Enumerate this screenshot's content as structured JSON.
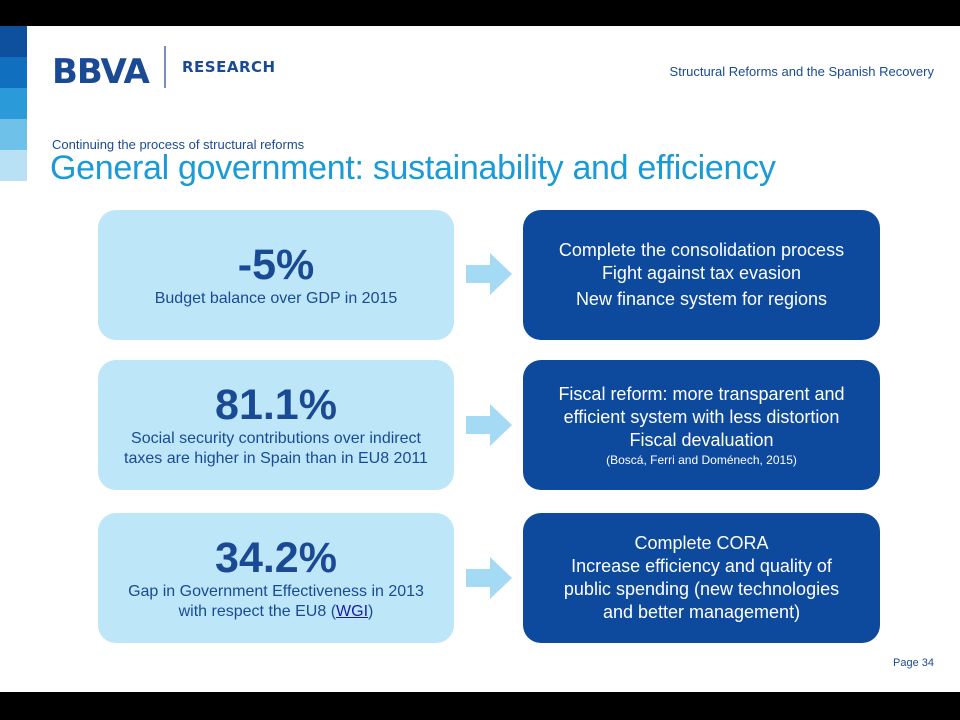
{
  "header": {
    "logo": "BBVA",
    "unit": "RESEARCH",
    "presentation_title": "Structural Reforms and the Spanish Recovery"
  },
  "slide": {
    "subtitle": "Continuing the process of structural reforms",
    "title": "General government: sustainability and efficiency"
  },
  "rows": [
    {
      "stat": "-5%",
      "stat_description": "Budget balance over GDP in 2015",
      "actions": [
        "Complete the consolidation process",
        "Fight against tax evasion",
        "New finance system for regions"
      ]
    },
    {
      "stat": "81.1%",
      "stat_description_1": "Social security contributions over indirect",
      "stat_description_2": "taxes are higher in Spain than in EU8 2011",
      "actions": [
        "Fiscal reform: more transparent and",
        "efficient system with less distortion",
        "Fiscal devaluation"
      ],
      "source": "(Boscá, Ferri and Doménech, 2015)"
    },
    {
      "stat": "34.2%",
      "stat_description_1": "Gap in Government Effectiveness in 2013",
      "stat_description_2_prefix": "with respect the EU8 (",
      "link": "WGI",
      "stat_description_2_suffix": ")",
      "actions": [
        "Complete CORA",
        "Increase efficiency and quality of",
        "public spending (new technologies",
        "and better management)"
      ]
    }
  ],
  "footer": {
    "page": "Page 34"
  },
  "colors": {
    "brand_navy": "#1a4a94",
    "title_blue": "#1a9ad6",
    "light_box": "#bde6f8",
    "dark_box": "#0d4a9d",
    "arrow": "#a5daf4",
    "side_strip": [
      "#0e4f9e",
      "#1070bf",
      "#2a9ad8",
      "#6ec2ea",
      "#b9e1f6"
    ]
  }
}
